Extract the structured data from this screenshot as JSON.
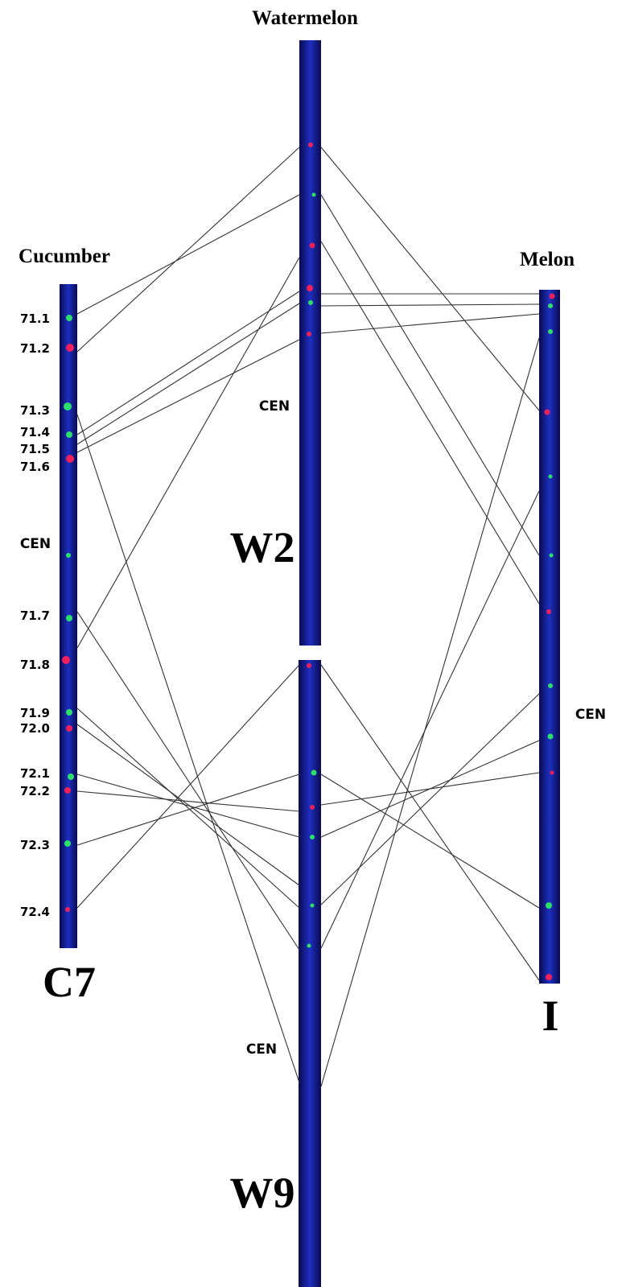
{
  "species": {
    "watermelon": "Watermelon",
    "cucumber": "Cucumber",
    "melon": "Melon"
  },
  "chromosomes": {
    "c7": "C7",
    "w2": "W2",
    "w9": "W9",
    "i": "I"
  },
  "cucumber_markers": [
    "71.1",
    "71.2",
    "71.3",
    "71.4",
    "71.5",
    "71.6",
    "71.7",
    "71.8",
    "71.9",
    "72.0",
    "72.1",
    "72.2",
    "72.3",
    "72.4"
  ],
  "centromere_labels": {
    "c7": "CEN",
    "w2": "CEN",
    "w9": "CEN",
    "i": "CEN"
  }
}
